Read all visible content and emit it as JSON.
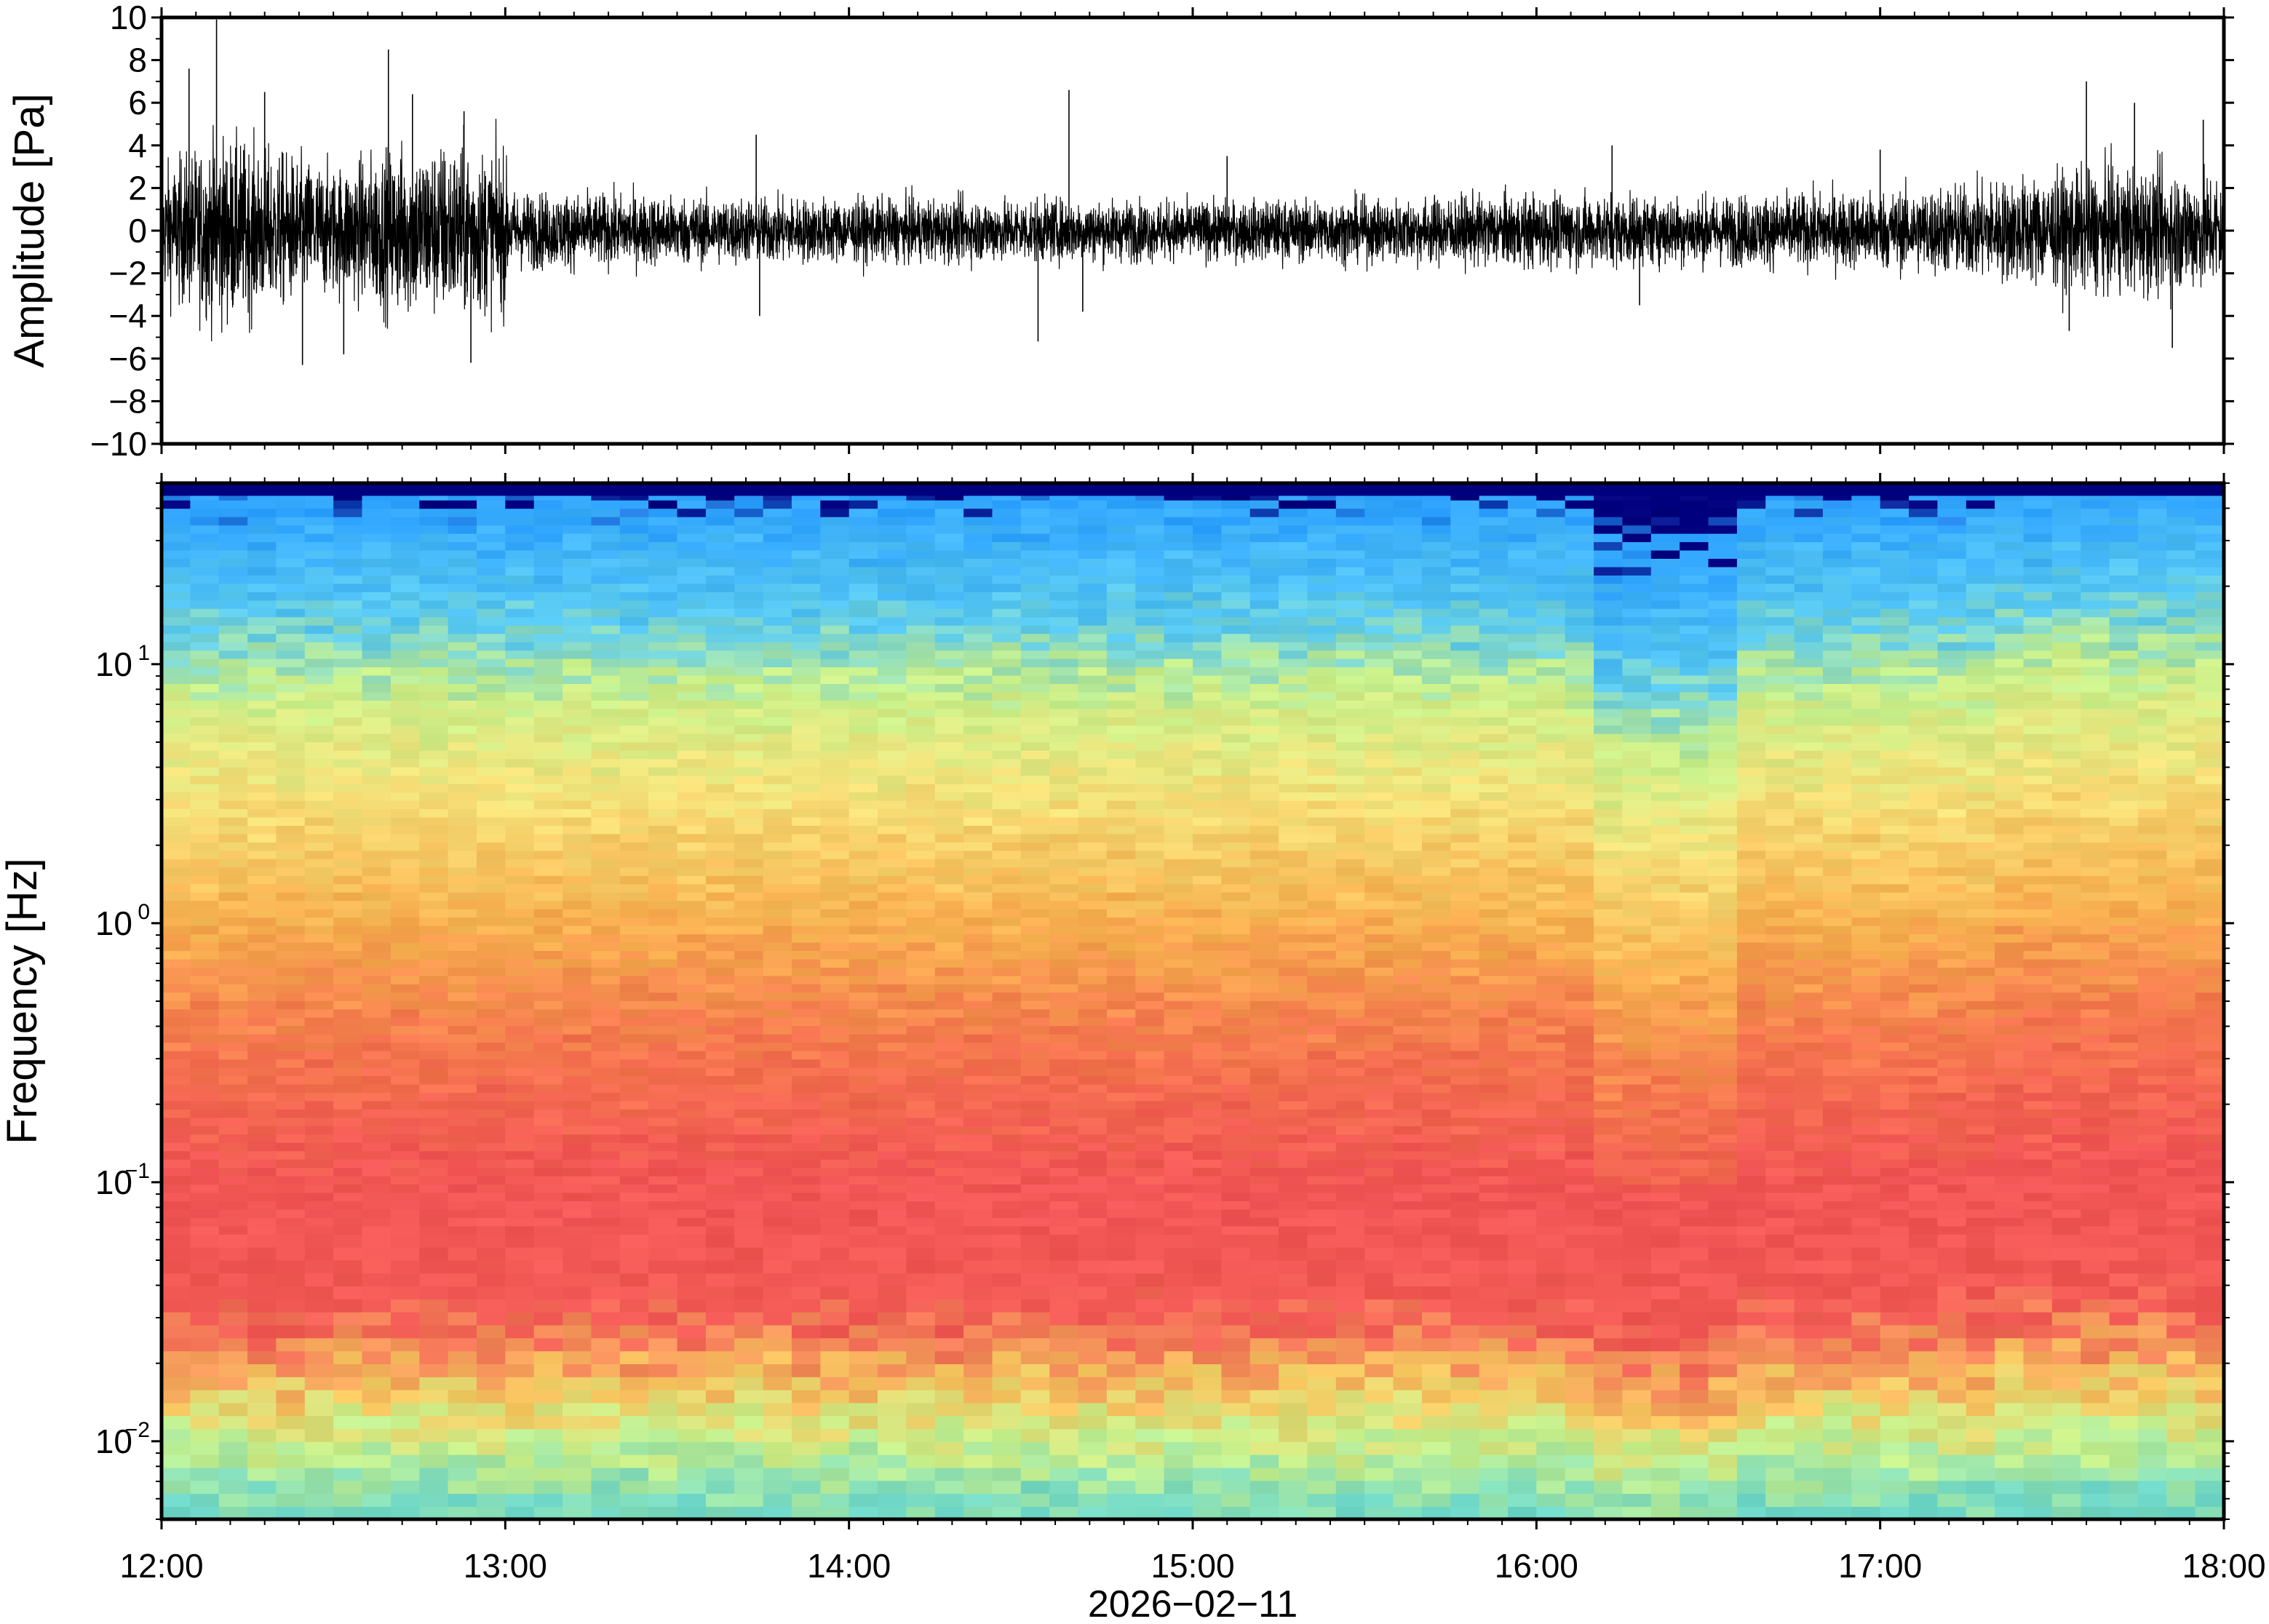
{
  "chart_data": [
    {
      "type": "line",
      "ylabel": "Amplitude [Pa]",
      "ylim": [
        -10,
        10
      ],
      "yticks": [
        "10",
        "8",
        "6",
        "4",
        "2",
        "0",
        "−2",
        "−4",
        "−6",
        "−8",
        "−10"
      ],
      "xlim": [
        "12:00",
        "18:00"
      ],
      "series": [
        {
          "envelope_hours": [
            12.0,
            12.17,
            12.33,
            12.5,
            12.67,
            12.83,
            13.0,
            13.01,
            13.5,
            14.0,
            14.5,
            15.0,
            15.5,
            16.0,
            16.5,
            17.0,
            17.25,
            17.5,
            17.75,
            18.0
          ],
          "envelope_pa": [
            2.6,
            3.8,
            3.2,
            2.6,
            3.4,
            3.6,
            3.2,
            1.6,
            1.4,
            1.3,
            1.3,
            1.2,
            1.3,
            1.5,
            1.4,
            1.6,
            1.9,
            2.3,
            2.6,
            2.4
          ],
          "spikes": [
            [
              12.08,
              7.6
            ],
            [
              12.16,
              9.9
            ],
            [
              12.3,
              6.5
            ],
            [
              12.41,
              -6.3
            ],
            [
              12.53,
              -5.8
            ],
            [
              12.66,
              8.5
            ],
            [
              12.73,
              6.4
            ],
            [
              12.88,
              5.6
            ],
            [
              12.9,
              -6.2
            ],
            [
              13.73,
              4.5
            ],
            [
              13.74,
              -4.0
            ],
            [
              14.55,
              -5.2
            ],
            [
              14.64,
              6.6
            ],
            [
              14.68,
              -3.8
            ],
            [
              15.1,
              3.5
            ],
            [
              16.22,
              4.0
            ],
            [
              16.3,
              -3.5
            ],
            [
              17.0,
              3.8
            ],
            [
              17.55,
              -4.7
            ],
            [
              17.6,
              7.0
            ],
            [
              17.74,
              6.0
            ],
            [
              17.85,
              -5.5
            ],
            [
              17.94,
              5.2
            ]
          ]
        }
      ]
    },
    {
      "type": "heatmap",
      "xlabel": "2026−02−11",
      "ylabel": "Frequency [Hz]",
      "yscale": "log",
      "ylim": [
        0.005,
        50
      ],
      "yticks": [
        {
          "value": 0.01,
          "base": "10",
          "exp": "−2"
        },
        {
          "value": 0.1,
          "base": "10",
          "exp": "−1"
        },
        {
          "value": 1,
          "base": "10",
          "exp": "0"
        },
        {
          "value": 10,
          "base": "10",
          "exp": "1"
        }
      ],
      "xticks": [
        "12:00",
        "13:00",
        "14:00",
        "15:00",
        "16:00",
        "17:00",
        "18:00"
      ],
      "xlim": [
        "12:00",
        "18:00"
      ],
      "colormap": [
        "#00007f",
        "#0050ff",
        "#2ba0ff",
        "#58c9f0",
        "#7de0c0",
        "#c8f08a",
        "#f5e27a",
        "#f7b04f",
        "#f4744e",
        "#f25555",
        "#f8a0a0"
      ],
      "colorbar": "none",
      "bands_log10f_to_color": [
        [
          -2.3,
          "#6fd8c8"
        ],
        [
          -2.0,
          "#c8f08a"
        ],
        [
          -1.8,
          "#f7c860"
        ],
        [
          -1.5,
          "#f25a55"
        ],
        [
          -1.0,
          "#f25555"
        ],
        [
          -0.5,
          "#f4744e"
        ],
        [
          0.0,
          "#f7b04f"
        ],
        [
          0.5,
          "#f5e27a"
        ],
        [
          0.9,
          "#c8f08a"
        ],
        [
          1.2,
          "#58c9f0"
        ],
        [
          1.65,
          "#2ba0ff"
        ],
        [
          1.7,
          "#00007f"
        ]
      ]
    }
  ]
}
